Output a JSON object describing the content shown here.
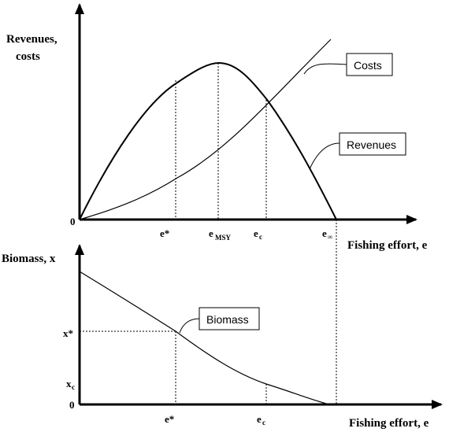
{
  "top_panel": {
    "y_title_line1": "Revenues,",
    "y_title_line2": "costs",
    "origin_label": "0",
    "x_title": "Fishing effort, e",
    "x_ticks": {
      "e_star": "e*",
      "e_msy_base": "e",
      "e_msy_sub": "MSY",
      "e_c_base": "e",
      "e_c_sub": "c",
      "e_inf_base": "e",
      "e_inf_sub": "∞"
    },
    "callouts": {
      "costs": "Costs",
      "revenues": "Revenues"
    }
  },
  "bottom_panel": {
    "y_title": "Biomass, x",
    "x_title": "Fishing effort, e",
    "y_ticks": {
      "x_star": "x*",
      "x_c_base": "x",
      "x_c_sub": "c",
      "zero": "0"
    },
    "x_ticks": {
      "e_star": "e*",
      "e_c_base": "e",
      "e_c_sub": "c"
    },
    "callouts": {
      "biomass": "Biomass"
    }
  },
  "colors": {
    "ink": "#000000",
    "background": "#ffffff"
  }
}
